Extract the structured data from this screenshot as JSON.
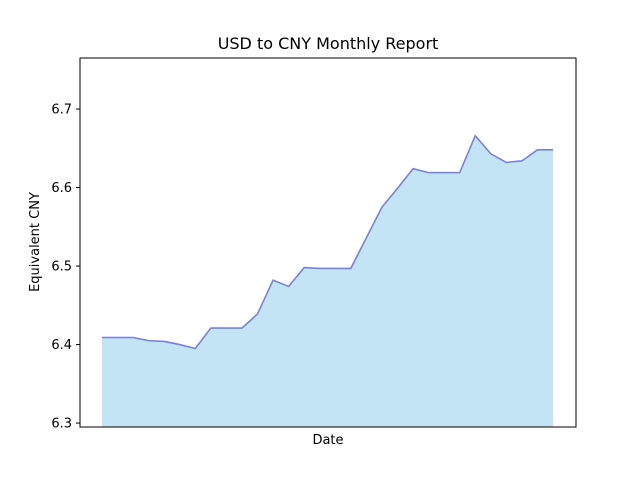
{
  "chart_data": {
    "type": "area",
    "title": "USD to CNY Monthly Report",
    "xlabel": "Date",
    "ylabel": "Equivalent CNY",
    "ylim": [
      6.295,
      6.765
    ],
    "yticks": [
      6.3,
      6.4,
      6.5,
      6.6,
      6.7
    ],
    "ytick_labels": [
      "6.3",
      "6.4",
      "6.5",
      "6.6",
      "6.7"
    ],
    "x_tick_labels_visible": false,
    "grid": false,
    "legend": false,
    "line_color": "#7b7fe0",
    "fill_color": "#c3e4f4",
    "fill_base": 6.295,
    "series": [
      {
        "values": [
          6.409,
          6.409,
          6.409,
          6.405,
          6.404,
          6.4,
          6.395,
          6.421,
          6.421,
          6.421,
          6.439,
          6.482,
          6.474,
          6.498,
          6.497,
          6.497,
          6.497,
          6.536,
          6.575,
          6.599,
          6.624,
          6.619,
          6.619,
          6.619,
          6.666,
          6.643,
          6.632,
          6.634,
          6.648,
          6.648
        ]
      }
    ]
  }
}
